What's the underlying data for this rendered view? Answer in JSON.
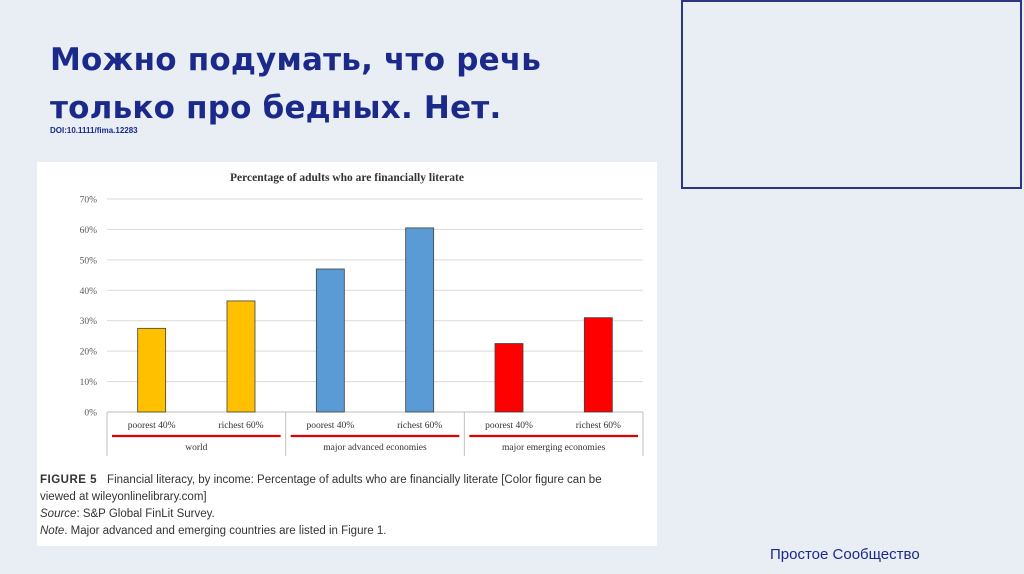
{
  "slide": {
    "title_line1": "Можно подумать, что речь",
    "title_line2": "только про бедных. Нет.",
    "doi": "DOI:10.1111/fima.12283",
    "footer": "Простое Сообщество"
  },
  "caption": {
    "label": "FIGURE 5",
    "line1": "Financial literacy, by income: Percentage of adults who are financially literate [Color figure can be",
    "line2": "viewed at wileyonlinelibrary.com]",
    "source_label": "Source",
    "source_text": ": S&P Global FinLit Survey.",
    "note_label": "Note",
    "note_text": ". Major advanced and emerging countries are listed in Figure 1."
  },
  "chart_data": {
    "type": "bar",
    "title": "Percentage of adults who are financially literate",
    "ylim": [
      0,
      70
    ],
    "yticks": [
      "0%",
      "10%",
      "20%",
      "30%",
      "40%",
      "50%",
      "60%",
      "70%"
    ],
    "grid": true,
    "groups": [
      {
        "name": "world",
        "color": "#ffc000",
        "categories": [
          "poorest 40%",
          "richest 60%"
        ],
        "values": [
          27.5,
          36.5
        ]
      },
      {
        "name": "major advanced economies",
        "color": "#5b9bd5",
        "categories": [
          "poorest 40%",
          "richest 60%"
        ],
        "values": [
          47,
          60.5
        ]
      },
      {
        "name": "major emerging economies",
        "color": "#ff0000",
        "categories": [
          "poorest 40%",
          "richest 60%"
        ],
        "values": [
          22.5,
          31
        ]
      }
    ],
    "underline_color": "#e00000"
  }
}
